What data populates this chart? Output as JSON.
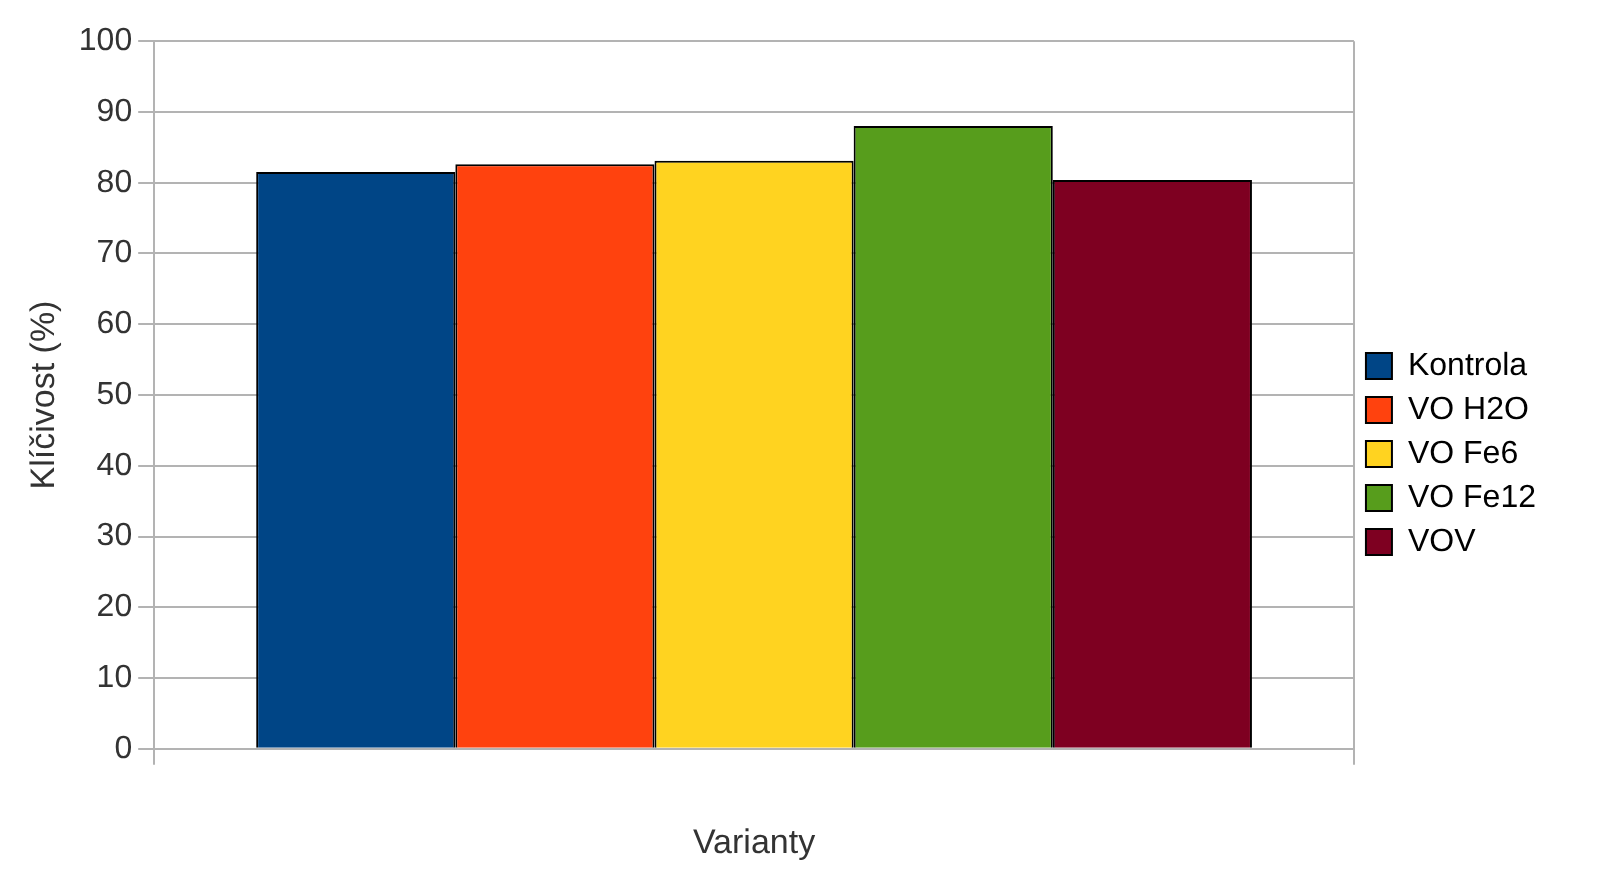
{
  "chart_data": {
    "type": "bar",
    "xlabel": "Varianty",
    "ylabel": "Klíčivost (%)",
    "categories": [
      null
    ],
    "series": [
      {
        "name": "Kontrola",
        "color": "#004586",
        "values": [
          81.5
        ]
      },
      {
        "name": "VO H2O",
        "color": "#ff420e",
        "values": [
          82.6
        ]
      },
      {
        "name": "VO Fe6",
        "color": "#ffd320",
        "values": [
          83.1
        ]
      },
      {
        "name": "VO Fe12",
        "color": "#579d1c",
        "values": [
          88.0
        ]
      },
      {
        "name": "VOV",
        "color": "#7e0021",
        "values": [
          80.4
        ]
      }
    ],
    "ylim": [
      0,
      100
    ],
    "yticks": [
      0,
      10,
      20,
      30,
      40,
      50,
      60,
      70,
      80,
      90,
      100
    ],
    "grid": "y",
    "legend": "right"
  }
}
